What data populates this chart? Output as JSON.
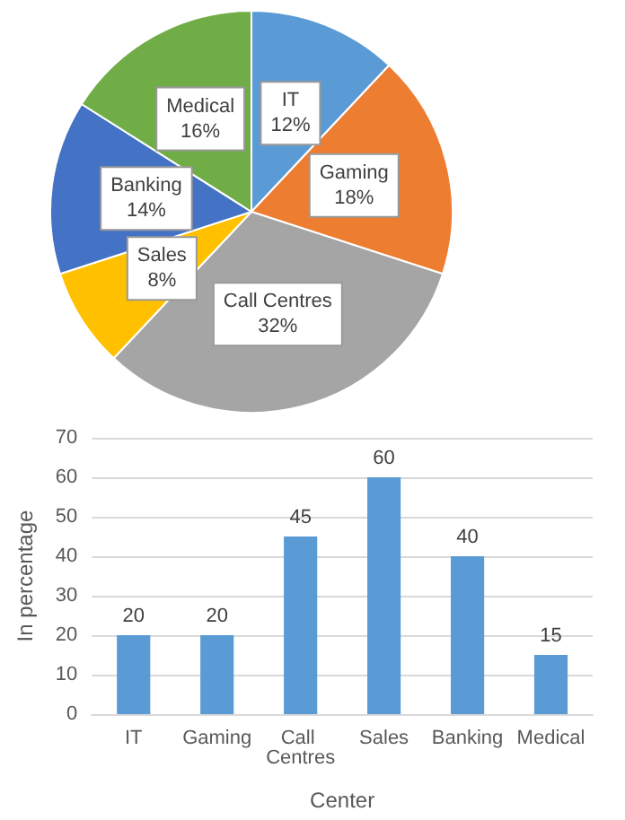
{
  "chart_data": [
    {
      "type": "pie",
      "categories": [
        "IT",
        "Gaming",
        "Call Centres",
        "Sales",
        "Banking",
        "Medical"
      ],
      "values": [
        12,
        18,
        32,
        8,
        14,
        16
      ],
      "colors": [
        "#5b9bd5",
        "#ed7d31",
        "#a5a5a5",
        "#ffc000",
        "#4472c4",
        "#70ad47"
      ],
      "value_labels": [
        "12%",
        "18%",
        "32%",
        "8%",
        "14%",
        "16%"
      ],
      "legend": false
    },
    {
      "type": "bar",
      "categories": [
        "IT",
        "Gaming",
        "Call Centres",
        "Sales",
        "Banking",
        "Medical"
      ],
      "values": [
        20,
        20,
        45,
        60,
        40,
        15
      ],
      "color": "#5b9bd5",
      "ylim": [
        0,
        70
      ],
      "yticks": [
        0,
        10,
        20,
        30,
        40,
        50,
        60,
        70
      ],
      "ylabel": "In percentage",
      "xlabel": "Center",
      "grid": "y",
      "data_labels": true,
      "legend": false
    }
  ]
}
